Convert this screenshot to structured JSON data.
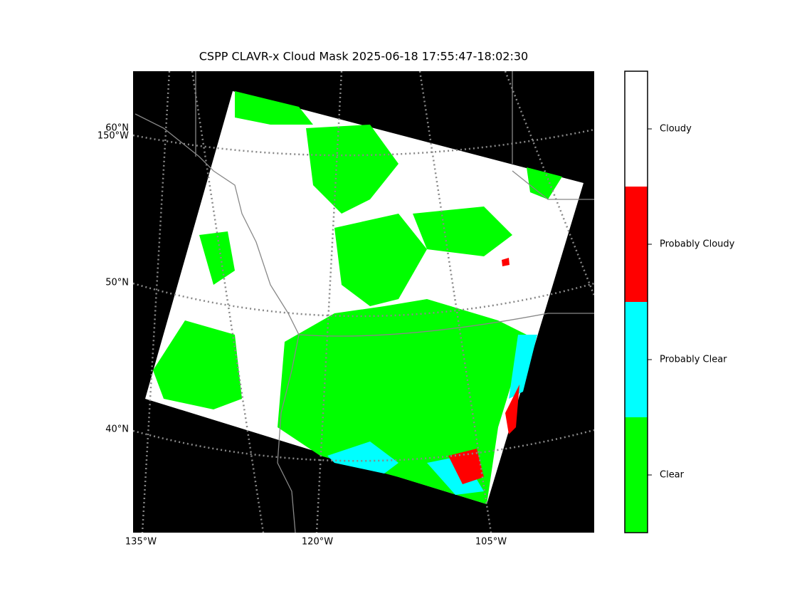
{
  "title": "CSPP CLAVR-x Cloud Mask 2025-06-18 17:55:47-18:02:30",
  "map": {
    "lat_labels": [
      "60°N",
      "50°N",
      "40°N"
    ],
    "lon_labels": [
      "150°W",
      "135°W",
      "120°W",
      "105°W"
    ]
  },
  "legend": {
    "items": [
      {
        "label": "Cloudy",
        "color": "#ffffff"
      },
      {
        "label": "Probably Cloudy",
        "color": "#ff0000"
      },
      {
        "label": "Probably Clear",
        "color": "#00ffff"
      },
      {
        "label": "Clear",
        "color": "#00ff00"
      }
    ]
  }
}
